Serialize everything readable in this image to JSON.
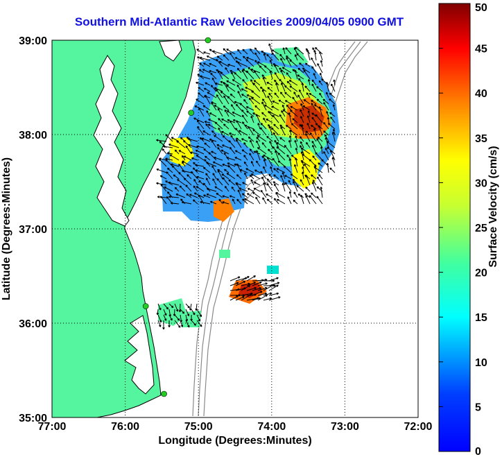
{
  "title": "Southern Mid-Atlantic Raw Velocities 2009/04/05 0900 GMT",
  "map": {
    "x_axis_label": "Longitude (Degrees:Minutes)",
    "y_axis_label": "Latitude (Degrees:Minutes)",
    "lon_range": [
      -77,
      -72
    ],
    "lat_range": [
      35,
      39
    ],
    "lon_ticks": [
      {
        "value": -77,
        "label": "77:00"
      },
      {
        "value": -76,
        "label": "76:00"
      },
      {
        "value": -75,
        "label": "75:00"
      },
      {
        "value": -74,
        "label": "74:00"
      },
      {
        "value": -73,
        "label": "73:00"
      },
      {
        "value": -72,
        "label": "72:00"
      }
    ],
    "lat_ticks": [
      {
        "value": 35,
        "label": "35:00"
      },
      {
        "value": 36,
        "label": "36:00"
      },
      {
        "value": 37,
        "label": "37:00"
      },
      {
        "value": 38,
        "label": "38:00"
      },
      {
        "value": 39,
        "label": "39:00"
      }
    ],
    "grid": "dotted",
    "land_color": "#55f5a0",
    "coastline_color": "#000000",
    "bathymetry_color": "#888888",
    "radar_station_color": "#22cc22",
    "radar_stations": [
      {
        "lon": -74.87,
        "lat": 39.0
      },
      {
        "lon": -75.1,
        "lat": 38.23
      },
      {
        "lon": -75.72,
        "lat": 36.18
      },
      {
        "lon": -75.47,
        "lat": 35.25
      }
    ]
  },
  "colorbar": {
    "label": "Surface Velocity (cm/s)",
    "unit": "cm/s",
    "min": 0,
    "max": 50,
    "ticks": [
      0,
      5,
      10,
      15,
      20,
      25,
      30,
      35,
      40,
      45,
      50
    ],
    "colormap": "jet"
  },
  "velocity_field": {
    "regions": [
      {
        "name": "main-northern-field",
        "lon_range": [
          -75.05,
          -73.05
        ],
        "lat_range": [
          37.2,
          38.95
        ],
        "speed_range_cm_s": [
          5,
          45
        ]
      },
      {
        "name": "offshore-eddy-maximum",
        "lon": -73.5,
        "lat": 38.1,
        "speed_cm_s": 42
      },
      {
        "name": "southern-patch-hatteras",
        "lon": -75.55,
        "lat": 36.3,
        "speed_range_cm_s": [
          10,
          22
        ]
      },
      {
        "name": "southern-offshore-patch",
        "lon": -74.3,
        "lat": 36.35,
        "speed_range_cm_s": [
          30,
          45
        ]
      }
    ]
  }
}
